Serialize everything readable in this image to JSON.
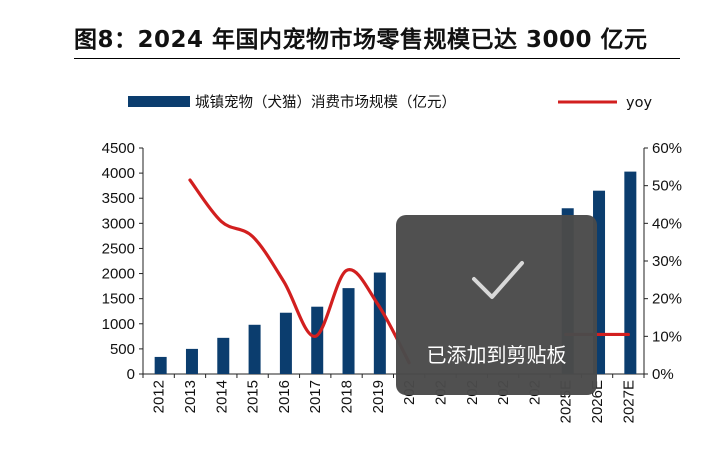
{
  "title": "图8：2024 年国内宠物市场零售规模已达 3000 亿元",
  "legend": {
    "bar_label": "城镇宠物（犬猫）消费市场规模（亿元）",
    "line_label": "yoy"
  },
  "toast": {
    "text": "已添加到剪贴板",
    "icon": "check-icon"
  },
  "colors": {
    "bar": "#0b3d6e",
    "line": "#d21f1f",
    "toast_bg": "#4a4a4a"
  },
  "chart_data": {
    "type": "bar",
    "categories": [
      "2012",
      "2013",
      "2014",
      "2015",
      "2016",
      "2017",
      "2018",
      "2019",
      "2020",
      "2021",
      "2022",
      "2023",
      "2024",
      "2025E",
      "2026E",
      "2027E"
    ],
    "category_labels_visible": [
      "2012",
      "2013",
      "2014",
      "2015",
      "2016",
      "2017",
      "2018",
      "2019",
      "202",
      "202",
      "202",
      "202",
      "202",
      "2025E",
      "2026E",
      "2027E"
    ],
    "series": [
      {
        "name": "城镇宠物（犬猫）消费市场规模（亿元）",
        "type": "bar",
        "axis": "left",
        "values": [
          340,
          500,
          720,
          980,
          1220,
          1340,
          1710,
          2020,
          null,
          null,
          null,
          null,
          null,
          3300,
          3650,
          4030
        ]
      },
      {
        "name": "yoy",
        "type": "line",
        "axis": "right",
        "values": [
          null,
          51.5,
          40.5,
          36.5,
          24.5,
          10,
          27.5,
          18.5,
          3,
          null,
          null,
          null,
          null,
          10.5,
          10.5,
          10.5
        ]
      }
    ],
    "y_left": {
      "ticks": [
        "0",
        "500",
        "1000",
        "1500",
        "2000",
        "2500",
        "3000",
        "3500",
        "4000",
        "4500"
      ],
      "ylim": [
        0,
        4500
      ]
    },
    "y_right": {
      "ticks": [
        "0%",
        "10%",
        "20%",
        "30%",
        "40%",
        "50%",
        "60%"
      ],
      "ylim": [
        0,
        60
      ]
    },
    "legend_position": "top",
    "grid": false
  }
}
